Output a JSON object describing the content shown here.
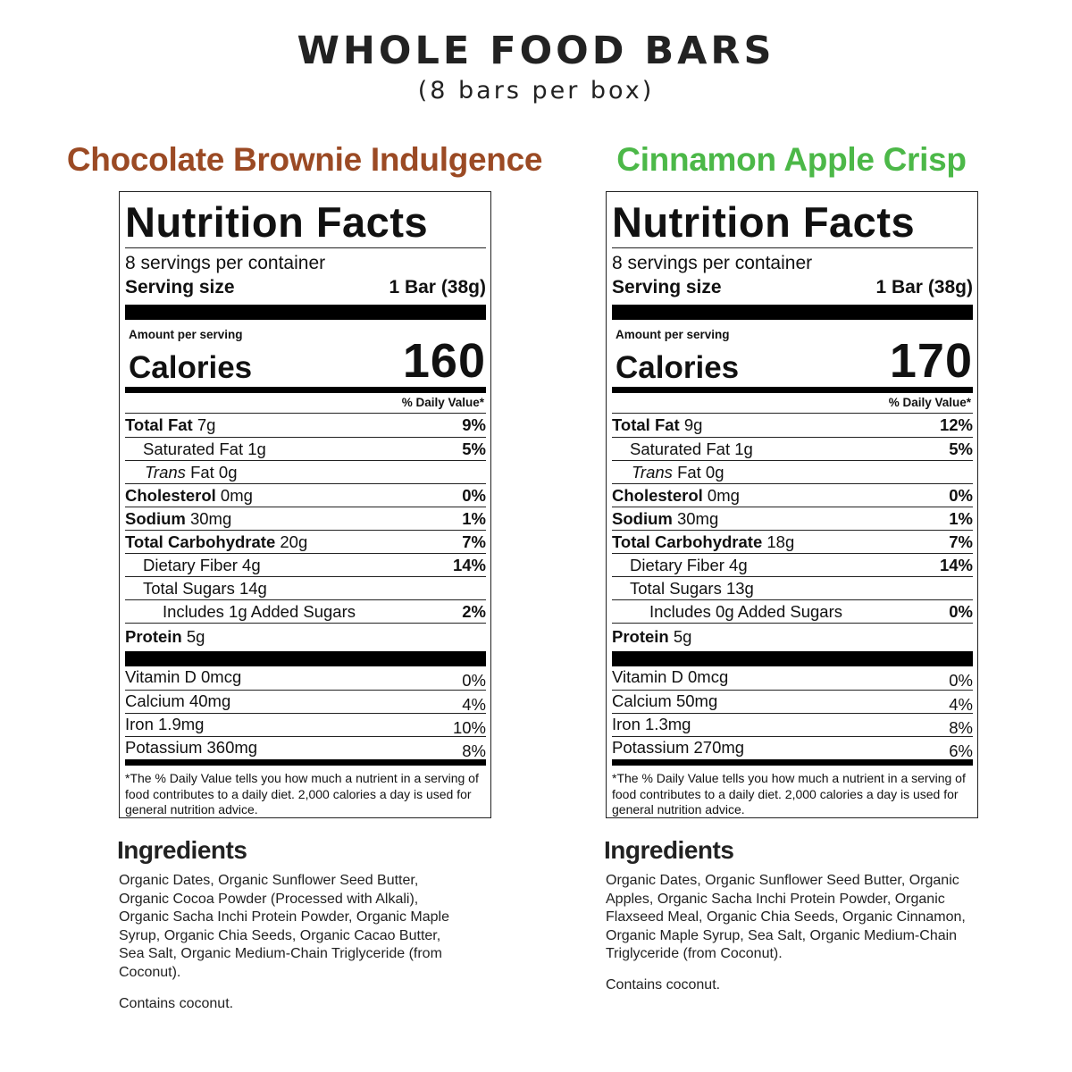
{
  "header": {
    "title": "WHOLE FOOD BARS",
    "subtitle": "(8 bars per box)"
  },
  "products": [
    {
      "name": "Chocolate Brownie Indulgence",
      "color": "#9b4a24",
      "label": {
        "heading": "Nutrition Facts",
        "servings": "8 servings per container",
        "serving_size_label": "Serving size",
        "serving_size": "1 Bar (38g)",
        "amount_per_serving": "Amount per serving",
        "calories_label": "Calories",
        "calories": 160,
        "dv_header": "% Daily Value*",
        "nutrients": [
          {
            "name": "Total Fat",
            "amount": "7g",
            "dv": "9%"
          },
          {
            "name": "Saturated Fat",
            "amount": "1g",
            "dv": "5%"
          },
          {
            "name": "Trans",
            "amount": "Fat 0g"
          },
          {
            "name": "Cholesterol",
            "amount": "0mg",
            "dv": "0%"
          },
          {
            "name": "Sodium",
            "amount": "30mg",
            "dv": "1%"
          },
          {
            "name": "Total Carbohydrate",
            "amount": "20g",
            "dv": "7%"
          },
          {
            "name": "Dietary Fiber",
            "amount": "4g",
            "dv": "14%"
          },
          {
            "name": "Total Sugars",
            "amount": "14g"
          },
          {
            "name": "Includes 1g Added Sugars",
            "dv": "2%"
          },
          {
            "name": "Protein",
            "amount": "5g"
          }
        ],
        "vitamins": [
          {
            "name": "Vitamin D 0mcg",
            "dv": "0%"
          },
          {
            "name": "Calcium 40mg",
            "dv": "4%"
          },
          {
            "name": "Iron 1.9mg",
            "dv": "10%"
          },
          {
            "name": "Potassium 360mg",
            "dv": "8%"
          }
        ],
        "footnote": "*The % Daily Value tells you how much a nutrient in a serving of food contributes to a daily diet. 2,000 calories a day is used for general nutrition advice."
      },
      "ingredients_title": "Ingredients",
      "ingredients": "Organic Dates, Organic Sunflower Seed Butter, Organic Cocoa Powder (Processed with Alkali), Organic Sacha Inchi Protein Powder, Organic Maple Syrup, Organic Chia Seeds, Organic Cacao Butter, Sea Salt, Organic Medium-Chain Triglyceride (from Coconut).",
      "contains": "Contains coconut."
    },
    {
      "name": "Cinnamon Apple Crisp",
      "color": "#4cb848",
      "label": {
        "heading": "Nutrition Facts",
        "servings": "8 servings per container",
        "serving_size_label": "Serving size",
        "serving_size": "1 Bar (38g)",
        "amount_per_serving": "Amount per serving",
        "calories_label": "Calories",
        "calories": 170,
        "dv_header": "% Daily Value*",
        "nutrients": [
          {
            "name": "Total Fat",
            "amount": "9g",
            "dv": "12%"
          },
          {
            "name": "Saturated Fat",
            "amount": "1g",
            "dv": "5%"
          },
          {
            "name": "Trans",
            "amount": "Fat 0g"
          },
          {
            "name": "Cholesterol",
            "amount": "0mg",
            "dv": "0%"
          },
          {
            "name": "Sodium",
            "amount": "30mg",
            "dv": "1%"
          },
          {
            "name": "Total Carbohydrate",
            "amount": "18g",
            "dv": "7%"
          },
          {
            "name": "Dietary Fiber",
            "amount": "4g",
            "dv": "14%"
          },
          {
            "name": "Total Sugars",
            "amount": "13g"
          },
          {
            "name": "Includes 0g Added Sugars",
            "dv": "0%"
          },
          {
            "name": "Protein",
            "amount": "5g"
          }
        ],
        "vitamins": [
          {
            "name": "Vitamin D 0mcg",
            "dv": "0%"
          },
          {
            "name": "Calcium 50mg",
            "dv": "4%"
          },
          {
            "name": "Iron 1.3mg",
            "dv": "8%"
          },
          {
            "name": "Potassium 270mg",
            "dv": "6%"
          }
        ],
        "footnote": "*The % Daily Value tells you how much a nutrient in a serving of food contributes to a daily diet. 2,000 calories a day is used for general nutrition advice."
      },
      "ingredients_title": "Ingredients",
      "ingredients": "Organic Dates, Organic Sunflower Seed Butter, Organic Apples, Organic Sacha Inchi Protein Powder, Organic Flaxseed Meal, Organic Chia Seeds, Organic Cinnamon, Organic Maple Syrup, Sea Salt, Organic Medium-Chain Triglyceride (from Coconut).",
      "contains": "Contains coconut."
    }
  ]
}
